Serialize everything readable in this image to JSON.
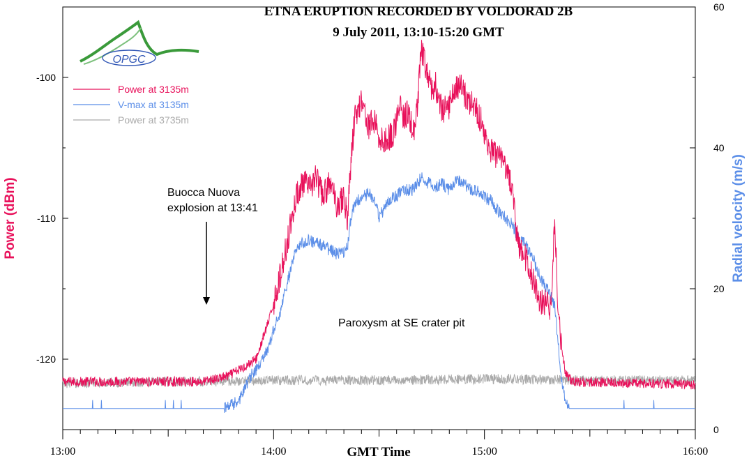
{
  "chart_data": {
    "type": "line",
    "title": "ETNA ERUPTION RECORDED BY VOLDORAD 2B",
    "subtitle": "9 July 2011, 13:10-15:20 GMT",
    "xlabel": "GMT Time",
    "ylabel_left": "Power (dBm)",
    "ylabel_right": "Radial velocity (m/s)",
    "x_range_minutes": [
      0,
      180
    ],
    "x_ticks": [
      {
        "minute": 0,
        "label": "13:00"
      },
      {
        "minute": 60,
        "label": "14:00"
      },
      {
        "minute": 120,
        "label": "15:00"
      },
      {
        "minute": 180,
        "label": "16:00"
      }
    ],
    "ylim_left": [
      -125,
      -95
    ],
    "y_ticks_left": [
      -120,
      -110,
      -100
    ],
    "ylim_right": [
      0,
      60
    ],
    "y_ticks_right": [
      0,
      20,
      40,
      60
    ],
    "legend_position": "top-left",
    "series": [
      {
        "name": "Power at 3135m",
        "axis": "left",
        "color": "#e8105a",
        "keypoints": [
          [
            0,
            -121.6
          ],
          [
            40,
            -121.6
          ],
          [
            47,
            -121.2
          ],
          [
            52,
            -120.5
          ],
          [
            55,
            -120
          ],
          [
            57,
            -118.5
          ],
          [
            59,
            -117
          ],
          [
            60,
            -116
          ],
          [
            62,
            -114
          ],
          [
            64,
            -111.5
          ],
          [
            66,
            -109
          ],
          [
            67,
            -108
          ],
          [
            69,
            -107.5
          ],
          [
            70,
            -108
          ],
          [
            72,
            -107
          ],
          [
            74,
            -108.5
          ],
          [
            76,
            -107.5
          ],
          [
            78,
            -109
          ],
          [
            80,
            -108.5
          ],
          [
            81,
            -110
          ],
          [
            82,
            -106
          ],
          [
            83,
            -103
          ],
          [
            85,
            -101.5
          ],
          [
            87,
            -103.5
          ],
          [
            89,
            -103
          ],
          [
            90,
            -104.5
          ],
          [
            92,
            -104.5
          ],
          [
            94,
            -104
          ],
          [
            95,
            -103
          ],
          [
            96,
            -102
          ],
          [
            97,
            -103
          ],
          [
            98,
            -102.5
          ],
          [
            100,
            -104
          ],
          [
            101,
            -102
          ],
          [
            102,
            -98
          ],
          [
            103,
            -99
          ],
          [
            105,
            -101
          ],
          [
            106,
            -100.5
          ],
          [
            108,
            -102.5
          ],
          [
            110,
            -102
          ],
          [
            111,
            -101
          ],
          [
            113,
            -100.5
          ],
          [
            115,
            -101.5
          ],
          [
            117,
            -102
          ],
          [
            119,
            -103
          ],
          [
            120,
            -104
          ],
          [
            121,
            -105
          ],
          [
            123,
            -105.5
          ],
          [
            125,
            -106
          ],
          [
            127,
            -107
          ],
          [
            128,
            -108
          ],
          [
            129,
            -111
          ],
          [
            130,
            -112
          ],
          [
            132,
            -113
          ],
          [
            134,
            -114.5
          ],
          [
            136,
            -116
          ],
          [
            138,
            -116
          ],
          [
            139,
            -116.5
          ],
          [
            140,
            -110
          ],
          [
            141,
            -117
          ],
          [
            142,
            -119
          ],
          [
            143,
            -121
          ],
          [
            145,
            -121.6
          ],
          [
            180,
            -121.8
          ]
        ],
        "noise": 0.35
      },
      {
        "name": "V-max at 3135m",
        "axis": "right",
        "color": "#5b8ee8",
        "keypoints": [
          [
            0,
            3
          ],
          [
            46,
            3
          ],
          [
            50,
            4
          ],
          [
            52,
            6
          ],
          [
            54,
            8
          ],
          [
            56,
            9
          ],
          [
            58,
            11
          ],
          [
            60,
            14
          ],
          [
            62,
            17
          ],
          [
            64,
            21
          ],
          [
            66,
            25
          ],
          [
            68,
            26.5
          ],
          [
            70,
            27
          ],
          [
            72,
            26.5
          ],
          [
            74,
            26
          ],
          [
            76,
            25.5
          ],
          [
            78,
            25
          ],
          [
            80,
            25
          ],
          [
            81,
            26
          ],
          [
            82,
            30
          ],
          [
            83,
            32
          ],
          [
            85,
            33
          ],
          [
            87,
            33.5
          ],
          [
            89,
            32.5
          ],
          [
            90,
            30
          ],
          [
            92,
            32
          ],
          [
            94,
            33
          ],
          [
            96,
            33.5
          ],
          [
            98,
            34
          ],
          [
            100,
            34
          ],
          [
            102,
            36
          ],
          [
            104,
            35
          ],
          [
            106,
            34.5
          ],
          [
            108,
            35
          ],
          [
            110,
            34
          ],
          [
            112,
            35.5
          ],
          [
            114,
            35
          ],
          [
            116,
            34
          ],
          [
            118,
            34
          ],
          [
            120,
            33
          ],
          [
            122,
            32.5
          ],
          [
            124,
            31
          ],
          [
            126,
            30
          ],
          [
            128,
            29
          ],
          [
            130,
            27
          ],
          [
            132,
            26
          ],
          [
            134,
            24
          ],
          [
            136,
            21.5
          ],
          [
            138,
            20
          ],
          [
            140,
            17.5
          ],
          [
            141,
            12
          ],
          [
            142,
            7
          ],
          [
            143,
            4
          ],
          [
            145,
            3
          ],
          [
            180,
            3
          ]
        ],
        "noise": 0.7
      },
      {
        "name": "Power at 3735m",
        "axis": "left",
        "color": "#aaaaaa",
        "keypoints": [
          [
            0,
            -121.7
          ],
          [
            30,
            -121.6
          ],
          [
            60,
            -121.5
          ],
          [
            90,
            -121.5
          ],
          [
            120,
            -121.4
          ],
          [
            150,
            -121.5
          ],
          [
            180,
            -121.5
          ]
        ],
        "noise": 0.35
      }
    ],
    "annotations": [
      {
        "text": "Buocca Nuova",
        "minute": 29.5
      },
      {
        "text": "explosion at 13:41",
        "minute": 29.5
      },
      {
        "text": "Paroxysm at SE crater pit",
        "minute": 90
      }
    ]
  },
  "logo": {
    "text": "OPGC"
  }
}
